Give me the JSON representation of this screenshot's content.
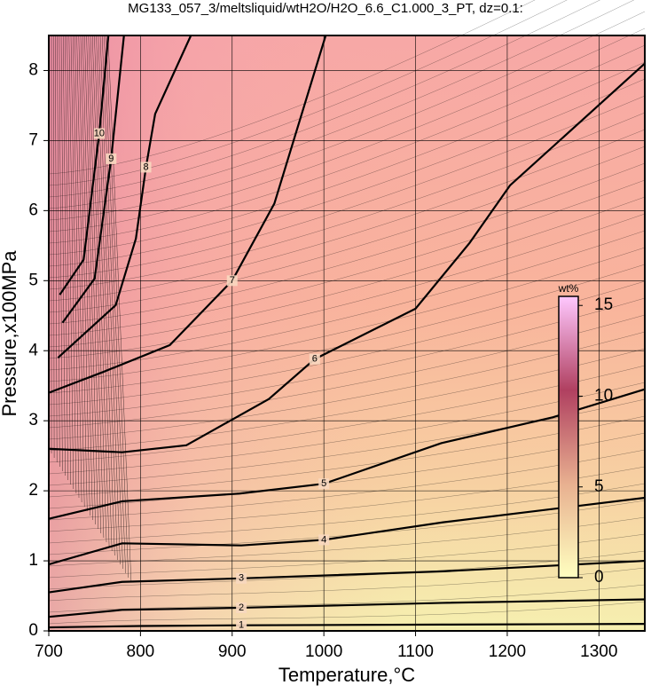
{
  "chart_data": {
    "type": "contour",
    "title": "MG133_057_3/meltsliquid/wtH2O/H2O_6.6_C1.000_3_PT, dz=0.1:",
    "x_label": "Temperature,°C",
    "y_label": "Pressure,x100MPa",
    "xlim": [
      700,
      1350
    ],
    "ylim": [
      0,
      8.5
    ],
    "xticks": [
      700,
      800,
      900,
      1000,
      1100,
      1200,
      1300
    ],
    "yticks": [
      0,
      1,
      2,
      3,
      4,
      5,
      6,
      7,
      8
    ],
    "grid": true,
    "contours": [
      {
        "level": 1,
        "x": [
          700,
          800,
          910,
          1130,
          1350
        ],
        "y": [
          0.05,
          0.07,
          0.08,
          0.09,
          0.1
        ]
      },
      {
        "level": 2,
        "x": [
          700,
          780,
          910,
          1130,
          1350
        ],
        "y": [
          0.2,
          0.3,
          0.33,
          0.4,
          0.45
        ]
      },
      {
        "level": 3,
        "x": [
          700,
          780,
          910,
          1130,
          1350
        ],
        "y": [
          0.55,
          0.7,
          0.75,
          0.85,
          1.0
        ]
      },
      {
        "level": 4,
        "x": [
          700,
          780,
          910,
          1000,
          1130,
          1350
        ],
        "y": [
          0.95,
          1.25,
          1.22,
          1.3,
          1.55,
          1.9
        ]
      },
      {
        "level": 5,
        "x": [
          700,
          780,
          908,
          1000,
          1128,
          1250,
          1350
        ],
        "y": [
          1.6,
          1.85,
          1.96,
          2.1,
          2.68,
          3.05,
          3.45
        ]
      },
      {
        "level": 6,
        "x": [
          700,
          780,
          850,
          940,
          990,
          1100,
          1159,
          1203,
          1350
        ],
        "y": [
          2.6,
          2.55,
          2.65,
          3.31,
          3.88,
          4.6,
          5.54,
          6.36,
          8.1
        ]
      },
      {
        "level": 7,
        "x": [
          700,
          760,
          832,
          900,
          946,
          1002
        ],
        "y": [
          3.4,
          3.7,
          4.08,
          5.0,
          6.1,
          8.5
        ]
      },
      {
        "level": 8,
        "x": [
          710,
          773,
          795,
          806,
          816,
          855
        ],
        "y": [
          3.9,
          4.65,
          5.6,
          6.62,
          7.38,
          8.5
        ]
      },
      {
        "level": 9,
        "x": [
          715,
          750,
          768,
          782
        ],
        "y": [
          4.4,
          5.03,
          6.74,
          8.5
        ]
      },
      {
        "level": 10,
        "x": [
          712,
          738,
          755,
          765
        ],
        "y": [
          4.8,
          5.3,
          7.1,
          8.5
        ]
      }
    ],
    "colorbar": {
      "label": "wt%",
      "lim": [
        0,
        15.5
      ],
      "ticks": [
        0,
        5,
        10,
        15
      ],
      "colors": [
        "#ffffc0",
        "#e8b090",
        "#b04060",
        "#ffc8ff"
      ]
    }
  }
}
